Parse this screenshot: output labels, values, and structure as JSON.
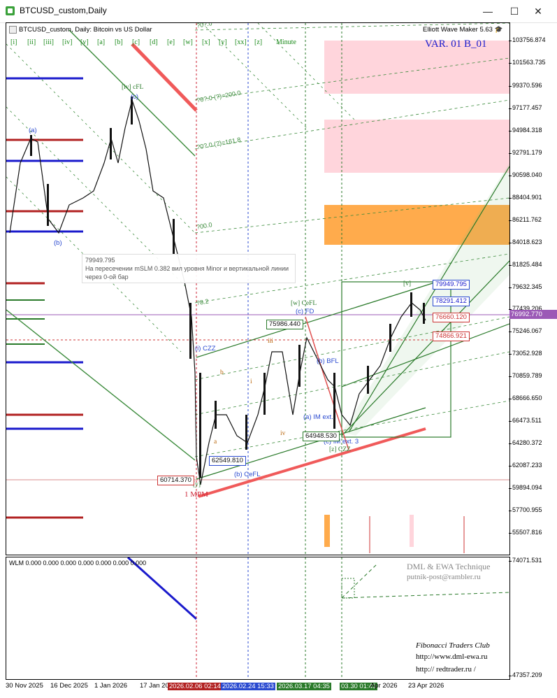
{
  "window": {
    "title": "BTCUSD_custom,Daily",
    "buttons": {
      "minimize": "—",
      "maximize": "☐",
      "close": "✕"
    }
  },
  "chart": {
    "header": "BTCUSD_custom, Daily:  Bitcoin vs US Dollar",
    "indicator_name": "Elliott Wave Maker 5.63",
    "variant": "VAR. 01 B_01",
    "nav_links": [
      "[i]",
      "[ii]",
      "[iii]",
      "[iv]",
      "[v]",
      "[a]",
      "[b]",
      "[c]",
      "[d]",
      "[e]",
      "[w]",
      "[x]",
      "[y]",
      "[xx]",
      "[z]",
      "Minute"
    ],
    "current_price": "76992.770",
    "price_ticks": [
      "103756.874",
      "101563.735",
      "99370.596",
      "97177.457",
      "94984.318",
      "92791.179",
      "90598.040",
      "88404.901",
      "86211.762",
      "84018.623",
      "81825.484",
      "79632.345",
      "77439.206",
      "75246.067",
      "73052.928",
      "70859.789",
      "68666.650",
      "66473.511",
      "64280.372",
      "62087.233",
      "59894.094",
      "57700.955",
      "55507.816"
    ],
    "sub_ticks": [
      "74071.531",
      "47357.209"
    ],
    "time_ticks": [
      "30 Nov 2025",
      "16 Dec 2025",
      "1 Jan 2026",
      "17 Jan 20",
      "Apr 2026",
      "23 Apr 2026"
    ],
    "time_badges": [
      "2026.02.06 02:14",
      "2026.02.24 15:33",
      "2026.03.17 04:35",
      "03.30 01:49"
    ],
    "price_badges": {
      "p79949": "79949.795",
      "p78291": "78291.412",
      "p76660": "76660.120",
      "p74866": "74866.921",
      "p75986": "75986.440",
      "p64948": "64948.530",
      "p62549": "62549.810",
      "p60714": "60714.370"
    },
    "tooltip": {
      "value": "79949.795",
      "line1": "На пересечении mSLM 0.382 вил уровня Minor и вертикальной линии",
      "line2": "через 0-ой бар"
    },
    "wave_labels": {
      "iv_cfl": "[iv] cFL",
      "c_top": "(c)",
      "a_left": "(a)",
      "b_left": "(b)",
      "w_cefl": "[w] CeFL",
      "c_fd": "(c) FD",
      "b_bfl": "(b) BFL",
      "a_im": "(a) IM ext.",
      "c_im": "(c) IM ext. 3",
      "z_czz": "[z] CZZ",
      "b_cefl": "(b) CeFL",
      "i_czz": "(i) CZZ",
      "y_bot": "[y]",
      "one_mpm": "1 MPM",
      "v_top": "[v]",
      "iii": "iii",
      "iv": "iv",
      "a_small": "a",
      "b_small": "b",
      "i_small": "i"
    },
    "fib_labels": [
      "?0?.0",
      "?0?.0 (?)=200.0",
      "?0?.0 (?)=161.8",
      "?00.0",
      "?8.2"
    ],
    "sub_window": {
      "label": "WLM 0.000 0.000 0.000 0.000 0.000 0.000 0.000",
      "brand": "DML & EWA Technique",
      "email": "putnik-post@rambler.ru",
      "club": "Fibonacci   Traders   Club",
      "site1": "http://www.dml-ewa.ru",
      "site2": "http:// redtrader.ru /"
    },
    "colors": {
      "fib_green": "#3a8a3a",
      "red_trend": "#f05a5a",
      "zone_pink": "#ffd5dc",
      "zone_orange": "#ffab4c",
      "support_blue": "#1a1acc",
      "support_red": "#b22222",
      "price_purple": "#9b59b6"
    }
  }
}
